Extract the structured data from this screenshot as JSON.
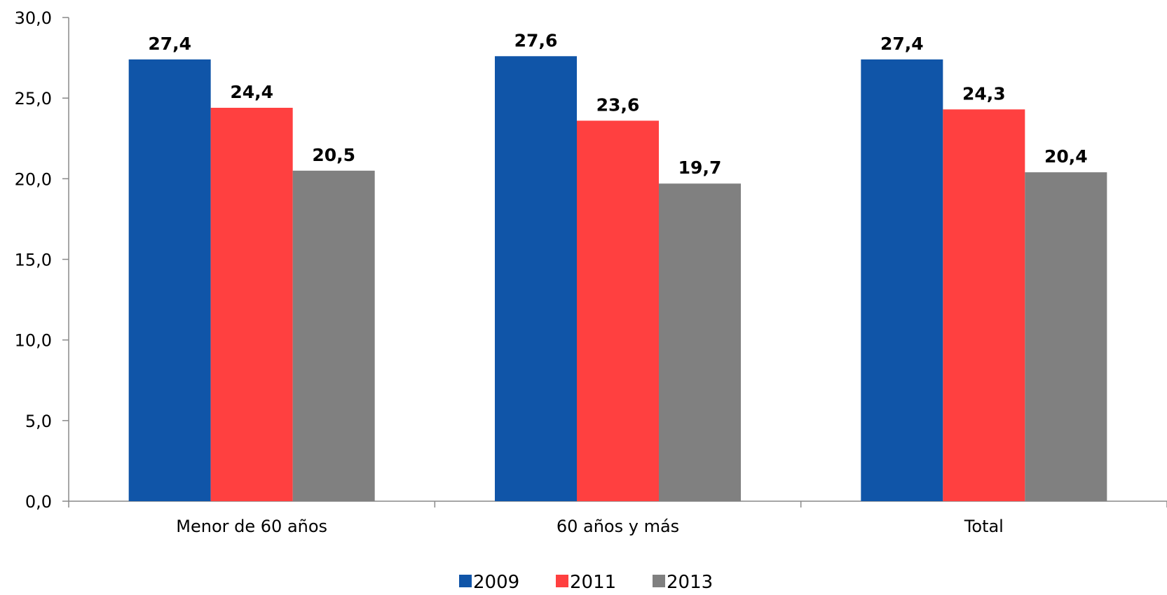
{
  "chart_data": {
    "type": "bar",
    "categories": [
      "Menor de 60 años",
      "60 años y más",
      "Total"
    ],
    "series": [
      {
        "name": "2009",
        "color": "#1055A8",
        "values": [
          27.4,
          27.6,
          27.4
        ],
        "labels": [
          "27,4",
          "27,6",
          "27,4"
        ]
      },
      {
        "name": "2011",
        "color": "#FF4040",
        "values": [
          24.4,
          23.6,
          24.3
        ],
        "labels": [
          "24,4",
          "23,6",
          "24,3"
        ]
      },
      {
        "name": "2013",
        "color": "#808080",
        "values": [
          20.5,
          19.7,
          20.4
        ],
        "labels": [
          "20,5",
          "19,7",
          "20,4"
        ]
      }
    ],
    "ylim": [
      0,
      30
    ],
    "yticks": [
      0,
      5,
      10,
      15,
      20,
      25,
      30
    ],
    "ytick_labels": [
      "0,0",
      "5,0",
      "10,0",
      "15,0",
      "20,0",
      "25,0",
      "30,0"
    ],
    "grid": false,
    "legend_position": "bottom-center"
  }
}
